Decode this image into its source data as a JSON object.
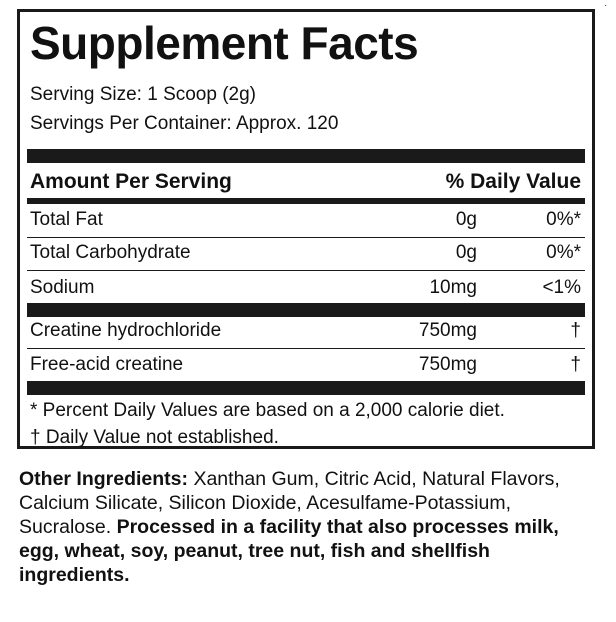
{
  "panel": {
    "title": "Supplement Facts",
    "serving_size": "Serving Size: 1 Scoop (2g)",
    "servings_per_container": "Servings Per Container: Approx. 120",
    "header": {
      "amount_label": "Amount Per Serving",
      "daily_value_label": "% Daily Value"
    },
    "rows": [
      {
        "name": "Total Fat",
        "amount": "0g",
        "dv": "0%*"
      },
      {
        "name": "Total Carbohydrate",
        "amount": "0g",
        "dv": "0%*"
      },
      {
        "name": "Sodium",
        "amount": "10mg",
        "dv": "<1%"
      },
      {
        "name": "Creatine hydrochloride",
        "amount": "750mg",
        "dv": "†"
      },
      {
        "name": "Free-acid creatine",
        "amount": "750mg",
        "dv": "†"
      }
    ],
    "footnotes": [
      "* Percent Daily Values are based on a 2,000 calorie diet.",
      "† Daily Value not established."
    ]
  },
  "other_ingredients": {
    "label": "Other Ingredients:",
    "text": " Xanthan Gum, Citric Acid, Natural Flavors, Calcium Silicate, Silicon Dioxide, Acesulfame-Potassium, Sucralose. ",
    "allergen_statement": "Processed in a facility that also processes milk, egg, wheat, soy, peanut, tree nut, fish and shellfish ingredients."
  },
  "corner_mark": "·"
}
